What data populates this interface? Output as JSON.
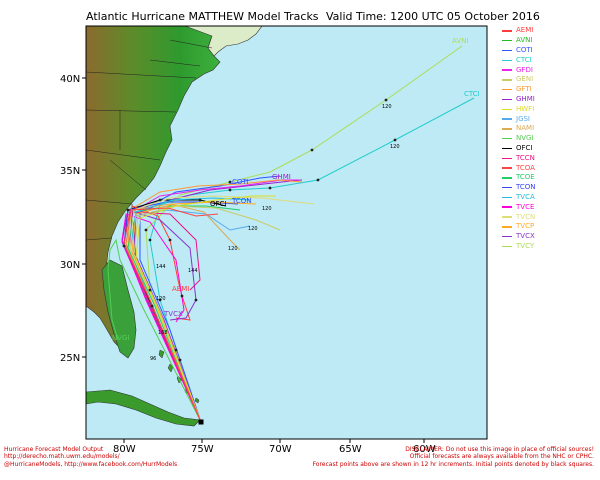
{
  "header": {
    "title": "Atlantic Hurricane MATTHEW Model Tracks",
    "valid_time": "Valid Time: 1200 UTC 05 October 2016"
  },
  "axes": {
    "x_ticks": [
      "80W",
      "75W",
      "70W",
      "65W",
      "60W"
    ],
    "y_ticks": [
      "40N",
      "35N",
      "30N",
      "25N"
    ]
  },
  "legend": [
    {
      "label": "AEMI",
      "color": "#ff3b3b"
    },
    {
      "label": "AVNI",
      "color": "#22bb22"
    },
    {
      "label": "COTI",
      "color": "#3355ff"
    },
    {
      "label": "CTCI",
      "color": "#22cccc"
    },
    {
      "label": "GFDI",
      "color": "#ee22ee"
    },
    {
      "label": "GENI",
      "color": "#cccc66"
    },
    {
      "label": "GFTI",
      "color": "#ff9933"
    },
    {
      "label": "GHMI",
      "color": "#9922cc"
    },
    {
      "label": "HWFI",
      "color": "#dddd22"
    },
    {
      "label": "JGSI",
      "color": "#55aaee"
    },
    {
      "label": "NAMI",
      "color": "#ddaa55"
    },
    {
      "label": "NVGI",
      "color": "#55cc55"
    },
    {
      "label": "OFCI",
      "color": "#000000"
    },
    {
      "label": "TCCN",
      "color": "#ee1188"
    },
    {
      "label": "TCOA",
      "color": "#ff4444"
    },
    {
      "label": "TCOE",
      "color": "#22cc66"
    },
    {
      "label": "TCON",
      "color": "#3344ee"
    },
    {
      "label": "TVCA",
      "color": "#22bbdd"
    },
    {
      "label": "TVCE",
      "color": "#ff00dd"
    },
    {
      "label": "TVCN",
      "color": "#dddd77"
    },
    {
      "label": "TVCP",
      "color": "#ffaa22"
    },
    {
      "label": "TVCX",
      "color": "#8833cc"
    },
    {
      "label": "TVCY",
      "color": "#aadd55"
    }
  ],
  "map_labels": {
    "ctci_end": "CTCI",
    "avni_end": "AVNI",
    "coti": "COTI",
    "ghmi": "GHMI",
    "ofci": "OFCI",
    "tcon": "TCON",
    "aemi": "AEMI",
    "tvcx": "TVCX",
    "nvgi": "NVGI",
    "ctci_120": "120",
    "avni_120": "120",
    "h120a": "120",
    "h120b": "120",
    "h144a": "144",
    "h144b": "144",
    "h168": "168",
    "h120c": "120",
    "h120d": "120",
    "h96": "96"
  },
  "footer": {
    "left_line1": "Hurricane Forecast Model Output",
    "left_line2": "http://derecho.math.uwm.edu/models/",
    "left_line3": "@HurricaneModels, http://www.facebook.com/HurrModels",
    "right_line1": "DISCLAIMER: Do not use this image in place of official sources!",
    "right_line2": "Official forecasts are always available from the NHC or CPHC.",
    "right_line3": "Forecast points above are shown in 12 hr increments. Initial points denoted by black squares."
  }
}
